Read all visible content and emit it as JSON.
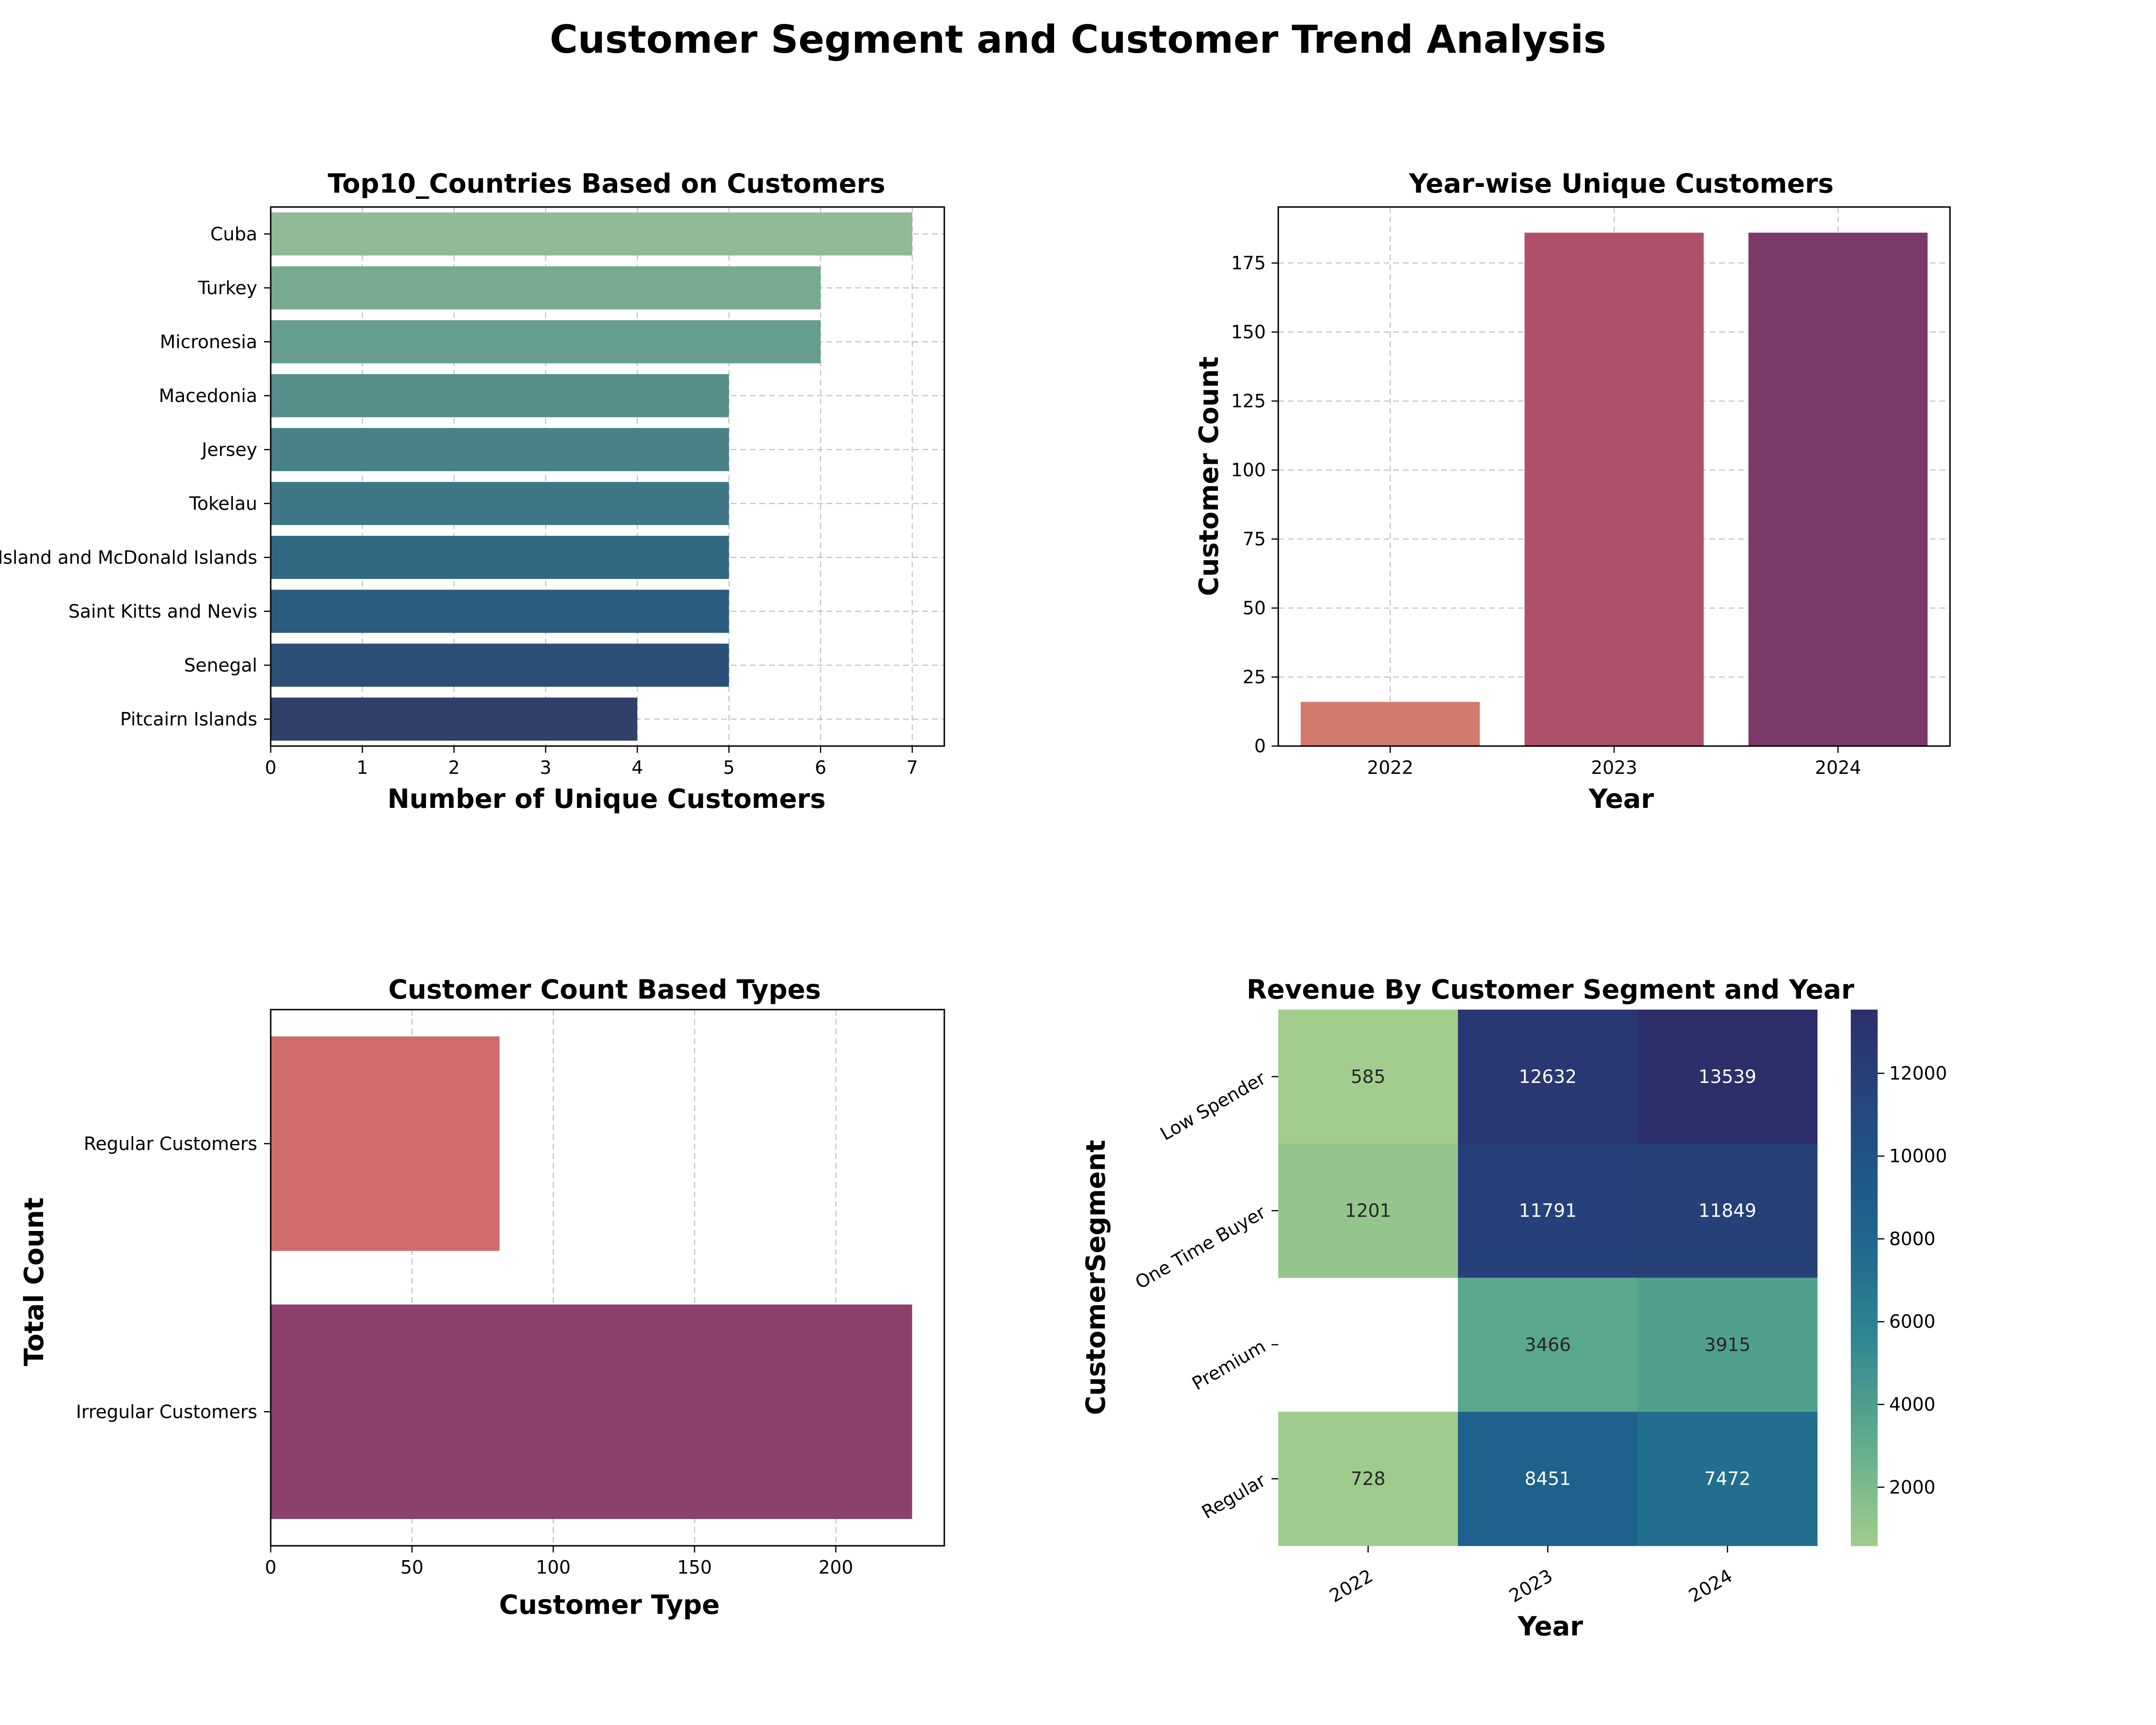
{
  "figure": {
    "title": "Customer Segment and Customer Trend Analysis"
  },
  "chart_data": [
    {
      "id": "top10",
      "type": "bar",
      "orientation": "horizontal",
      "title": "Top10_Countries Based on Customers",
      "xlabel": "Number of Unique Customers",
      "ylabel": "",
      "categories": [
        "Cuba",
        "Turkey",
        "Micronesia",
        "Macedonia",
        "Jersey",
        "Tokelau",
        "Heard Island and McDonald Islands",
        "Saint Kitts and Nevis",
        "Senegal",
        "Pitcairn Islands"
      ],
      "values": [
        7,
        6,
        6,
        5,
        5,
        5,
        5,
        5,
        5,
        4
      ],
      "colors": [
        "#93ba97",
        "#78aa90",
        "#659d8e",
        "#568e8a",
        "#4a8187",
        "#3f7685",
        "#306781",
        "#2a5a7c",
        "#2c4f75",
        "#313f6b"
      ],
      "xlim": [
        0,
        7.35
      ],
      "xticks": [
        0,
        1,
        2,
        3,
        4,
        5,
        6,
        7
      ],
      "grid": true
    },
    {
      "id": "yearwise",
      "type": "bar",
      "title": "Year-wise Unique Customers",
      "xlabel": "Year",
      "ylabel": "Customer Count",
      "categories": [
        "2022",
        "2023",
        "2024"
      ],
      "values": [
        16,
        186,
        186
      ],
      "colors": [
        "#d37a6e",
        "#af506a",
        "#793a6a"
      ],
      "ylim": [
        0,
        195.3
      ],
      "yticks": [
        0,
        25,
        50,
        75,
        100,
        125,
        150,
        175
      ],
      "grid": true
    },
    {
      "id": "types",
      "type": "bar",
      "orientation": "horizontal",
      "title": "Customer Count Based Types",
      "xlabel": "Customer Type",
      "ylabel": "Total Count",
      "categories": [
        "Regular Customers",
        "Irregular Customers"
      ],
      "values": [
        81,
        227
      ],
      "colors": [
        "#cf6b6a",
        "#8b416b"
      ],
      "xlim": [
        0,
        238.4
      ],
      "xticks": [
        0,
        50,
        100,
        150,
        200
      ],
      "grid": true
    },
    {
      "id": "heatmap",
      "type": "heatmap",
      "title": "Revenue By Customer Segment and Year",
      "xlabel": "Year",
      "ylabel": "CustomerSegment",
      "x": [
        "2022",
        "2023",
        "2024"
      ],
      "y": [
        "Low Spender",
        "One Time Buyer",
        "Premium",
        "Regular"
      ],
      "values": [
        [
          585,
          12632,
          13539
        ],
        [
          1201,
          11791,
          11849
        ],
        [
          null,
          3466,
          3915
        ],
        [
          728,
          8451,
          7472
        ]
      ],
      "labels": [
        [
          "585",
          "12632",
          "13539"
        ],
        [
          "1201",
          "11791",
          "11849"
        ],
        [
          "",
          "3466",
          "3915"
        ],
        [
          "728",
          "8451",
          "7472"
        ]
      ],
      "vmin": 585,
      "vmax": 13539,
      "colorbar_ticks": [
        2000,
        4000,
        6000,
        8000,
        10000,
        12000
      ],
      "colormap": [
        "#a3cd8c",
        "#5eab8d",
        "#2d8491",
        "#1d628c",
        "#234a80",
        "#2c2f6a"
      ]
    }
  ]
}
